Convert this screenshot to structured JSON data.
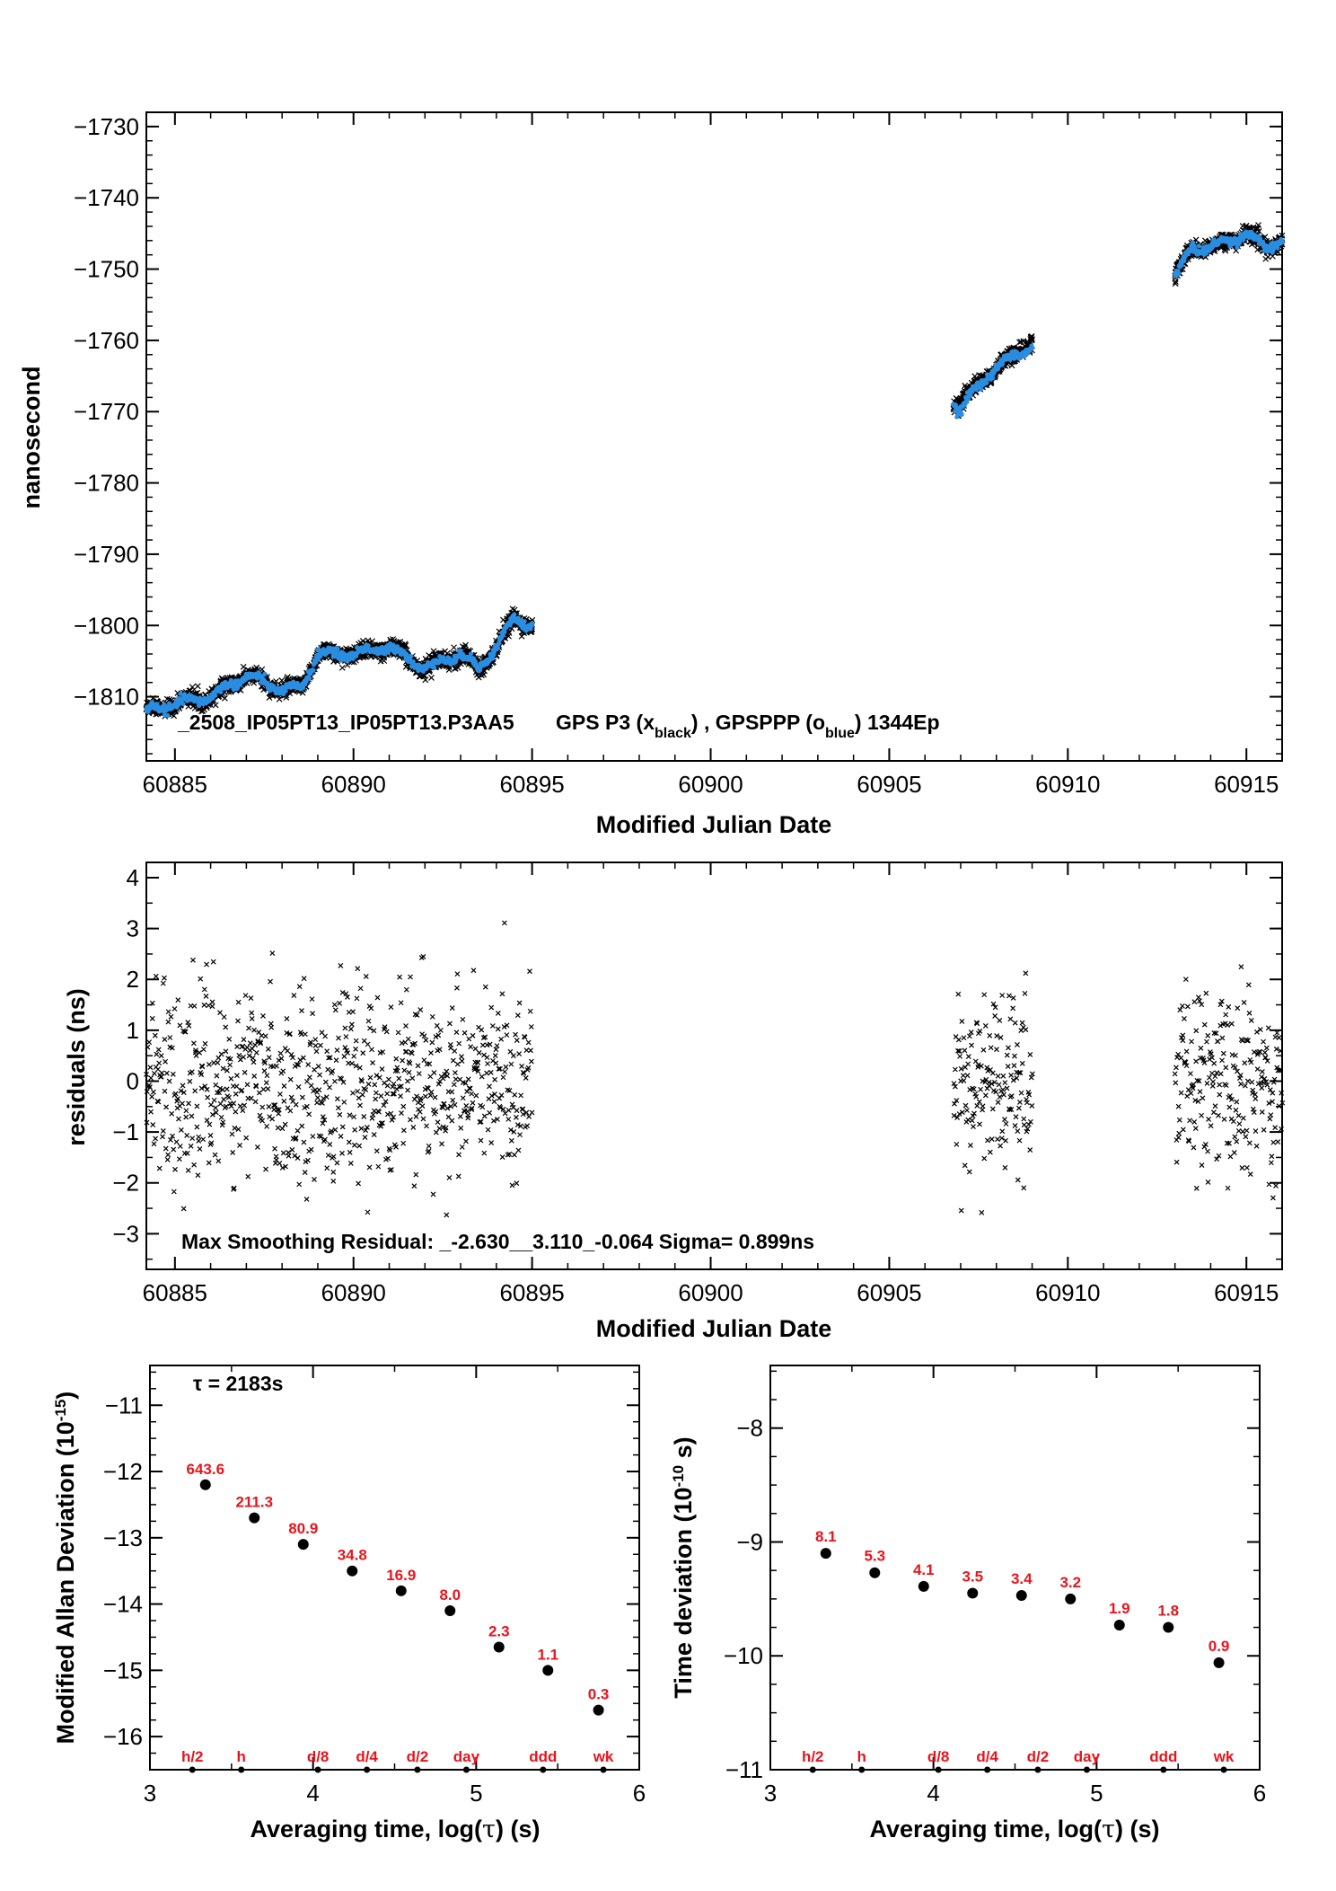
{
  "chart_data": [
    {
      "type": "scatter",
      "xlabel": "Modified Julian Date",
      "ylabel": "nanosecond",
      "xlim": [
        60884.2,
        60916
      ],
      "ylim": [
        -1819,
        -1728
      ],
      "xticks": [
        60885,
        60890,
        60895,
        60900,
        60905,
        60910,
        60915
      ],
      "yticks": [
        -1730,
        -1740,
        -1750,
        -1760,
        -1770,
        -1780,
        -1790,
        -1800,
        -1810
      ],
      "annotation": {
        "id": "_2508_IP05PT13_IP05PT13.P3AA5",
        "main": "GPS P3 (x",
        "sub1": "black",
        "mid": ") ,  GPSPPP (o",
        "sub2": "blue",
        "end": ")  1344Ep"
      },
      "series": [
        {
          "marker": "x",
          "color": "#000000",
          "segments": [
            {
              "x": [
                60884.2,
                60885,
                60886,
                60887,
                60888,
                60888.5,
                60889,
                60890,
                60891,
                60892,
                60893,
                60893.5,
                60894,
                60894.5,
                60895
              ],
              "y": [
                -1812,
                -1811,
                -1810,
                -1807,
                -1809,
                -1809,
                -1804,
                -1804,
                -1803,
                -1806,
                -1804,
                -1806,
                -1803,
                -1799,
                -1800
              ]
            },
            {
              "x": [
                60906.8,
                60907,
                60907.5,
                60908,
                60908.5,
                60909
              ],
              "y": [
                -1769,
                -1769,
                -1766,
                -1764,
                -1762,
                -1760
              ]
            },
            {
              "x": [
                60913,
                60913.5,
                60914,
                60914.5,
                60915,
                60915.5,
                60916
              ],
              "y": [
                -1751,
                -1747,
                -1747,
                -1746,
                -1745,
                -1747,
                -1746
              ]
            }
          ]
        },
        {
          "marker": "o",
          "color": "#2a8de0",
          "segments": [
            {
              "x": [
                60884.2,
                60885,
                60886,
                60887,
                60888,
                60888.5,
                60889,
                60890,
                60891,
                60892,
                60893,
                60893.5,
                60894,
                60894.5,
                60895
              ],
              "y": [
                -1812,
                -1811,
                -1810,
                -1807,
                -1809,
                -1809,
                -1804,
                -1804,
                -1803,
                -1806,
                -1804,
                -1806,
                -1803,
                -1799,
                -1800
              ]
            },
            {
              "x": [
                60906.8,
                60907,
                60907.5,
                60908,
                60908.5,
                60909
              ],
              "y": [
                -1769,
                -1770,
                -1766,
                -1764,
                -1762,
                -1761
              ]
            },
            {
              "x": [
                60913,
                60913.5,
                60914,
                60914.5,
                60915,
                60915.5,
                60916
              ],
              "y": [
                -1751,
                -1747,
                -1747,
                -1746,
                -1745,
                -1747,
                -1746
              ]
            }
          ]
        }
      ]
    },
    {
      "type": "scatter",
      "xlabel": "Modified Julian Date",
      "ylabel": "residuals (ns)",
      "xlim": [
        60884.2,
        60916
      ],
      "ylim": [
        -3.7,
        4.3
      ],
      "xticks": [
        60885,
        60890,
        60895,
        60900,
        60905,
        60910,
        60915
      ],
      "yticks": [
        4,
        3,
        2,
        1,
        0,
        -1,
        -2,
        -3
      ],
      "annotation": "Max Smoothing Residual: _-2.630__3.110_-0.064  Sigma= 0.899ns",
      "series": [
        {
          "marker": "x",
          "color": "#000000",
          "sigma": 0.899,
          "min": -2.63,
          "max": 3.11,
          "mean": -0.064,
          "x_ranges": [
            [
              60884.2,
              60895
            ],
            [
              60906.8,
              60909
            ],
            [
              60913,
              60916
            ]
          ]
        }
      ]
    },
    {
      "type": "scatter",
      "xlabel_parts": [
        "Averaging time, log(",
        "τ",
        ") (s)"
      ],
      "ylabel_parts": [
        "Modified Allan Deviation (10",
        "-15",
        ")"
      ],
      "xlim": [
        3,
        6
      ],
      "ylim": [
        -16.5,
        -10.4
      ],
      "xticks": [
        3,
        4,
        5,
        6
      ],
      "yticks": [
        -11,
        -12,
        -13,
        -14,
        -15,
        -16
      ],
      "tau_note": "τ = 2183s",
      "x": [
        3.34,
        3.64,
        3.94,
        4.24,
        4.54,
        4.84,
        5.14,
        5.44,
        5.75
      ],
      "y": [
        -12.2,
        -12.7,
        -13.1,
        -13.5,
        -13.8,
        -14.1,
        -14.65,
        -15.0,
        -15.6
      ],
      "value_labels": [
        "643.6",
        "211.3",
        "80.9",
        "34.8",
        "16.9",
        "8.0",
        "2.3",
        "1.1",
        "0.3"
      ],
      "markers": [
        {
          "label": "h/2",
          "x": 3.26
        },
        {
          "label": "h",
          "x": 3.56
        },
        {
          "label": "d/8",
          "x": 4.03
        },
        {
          "label": "d/4",
          "x": 4.33
        },
        {
          "label": "d/2",
          "x": 4.64
        },
        {
          "label": "day",
          "x": 4.94
        },
        {
          "label": "ddd",
          "x": 5.41
        },
        {
          "label": "wk",
          "x": 5.78
        }
      ]
    },
    {
      "type": "scatter",
      "xlabel_parts": [
        "Averaging time, log(",
        "τ",
        ") (s)"
      ],
      "ylabel_parts": [
        "Time deviation (10",
        "-10",
        " s)"
      ],
      "xlim": [
        3,
        6
      ],
      "ylim": [
        -11,
        -7.45
      ],
      "xticks": [
        3,
        4,
        5,
        6
      ],
      "yticks": [
        -8,
        -9,
        -10,
        -11
      ],
      "x": [
        3.34,
        3.64,
        3.94,
        4.24,
        4.54,
        4.84,
        5.14,
        5.44,
        5.75
      ],
      "y": [
        -9.1,
        -9.27,
        -9.39,
        -9.45,
        -9.47,
        -9.5,
        -9.73,
        -9.75,
        -10.06
      ],
      "value_labels": [
        "8.1",
        "5.3",
        "4.1",
        "3.5",
        "3.4",
        "3.2",
        "1.9",
        "1.8",
        "0.9"
      ],
      "markers": [
        {
          "label": "h/2",
          "x": 3.26
        },
        {
          "label": "h",
          "x": 3.56
        },
        {
          "label": "d/8",
          "x": 4.03
        },
        {
          "label": "d/4",
          "x": 4.33
        },
        {
          "label": "d/2",
          "x": 4.64
        },
        {
          "label": "day",
          "x": 4.94
        },
        {
          "label": "ddd",
          "x": 5.41
        },
        {
          "label": "wk",
          "x": 5.78
        }
      ]
    }
  ]
}
